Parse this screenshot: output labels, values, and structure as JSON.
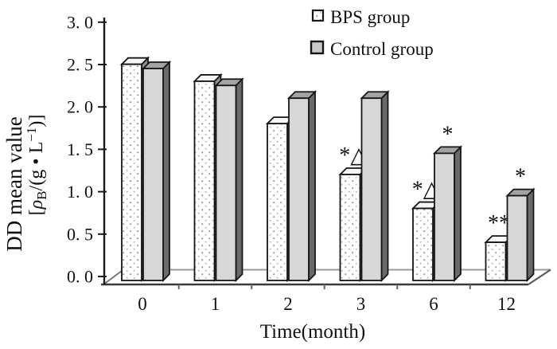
{
  "chart_data": {
    "type": "bar",
    "style": "3d-clustered",
    "title": "",
    "xlabel": "Time(month)",
    "ylabel_line1": "DD mean value",
    "ylabel_line2_plain": "[ρB/(g • L−1)]",
    "ylabel2": {
      "pre": "[",
      "rho": "ρ",
      "sub": "B",
      "mid": "/(g • L",
      "sup": "−1",
      "post": ")]"
    },
    "categories": [
      "0",
      "1",
      "2",
      "3",
      "6",
      "12"
    ],
    "series": [
      {
        "name": "BPS group",
        "values": [
          2.55,
          2.35,
          1.85,
          1.25,
          0.85,
          0.45
        ],
        "annotations": [
          "",
          "",
          "",
          "*△",
          "*△",
          "**"
        ]
      },
      {
        "name": "Control group",
        "values": [
          2.5,
          2.3,
          2.15,
          2.15,
          1.5,
          1.0
        ],
        "annotations": [
          "",
          "",
          "",
          "",
          "*",
          "*"
        ]
      }
    ],
    "ylim": [
      0,
      3
    ],
    "ytick_step": 0.5,
    "ytick_labels": [
      "0. 0",
      "0. 5",
      "1. 0",
      "1. 5",
      "2. 0",
      "2. 5",
      "3. 0"
    ],
    "grid": false,
    "legend_position": "top-right",
    "colors": {
      "bps_front": "#ffffff",
      "bps_top": "#f6f6f6",
      "bps_side": "#8f8f8f",
      "bps_dot": "#9b9b9b",
      "control_front": "#d7d7d7",
      "control_top": "#a3a3a3",
      "control_side": "#6a6a6a",
      "outline": "#161616",
      "axis": "#1a1a1a",
      "floor_front": "#3a3a3a",
      "floor_rear": "#9a9a9a",
      "text": "#111111"
    }
  }
}
